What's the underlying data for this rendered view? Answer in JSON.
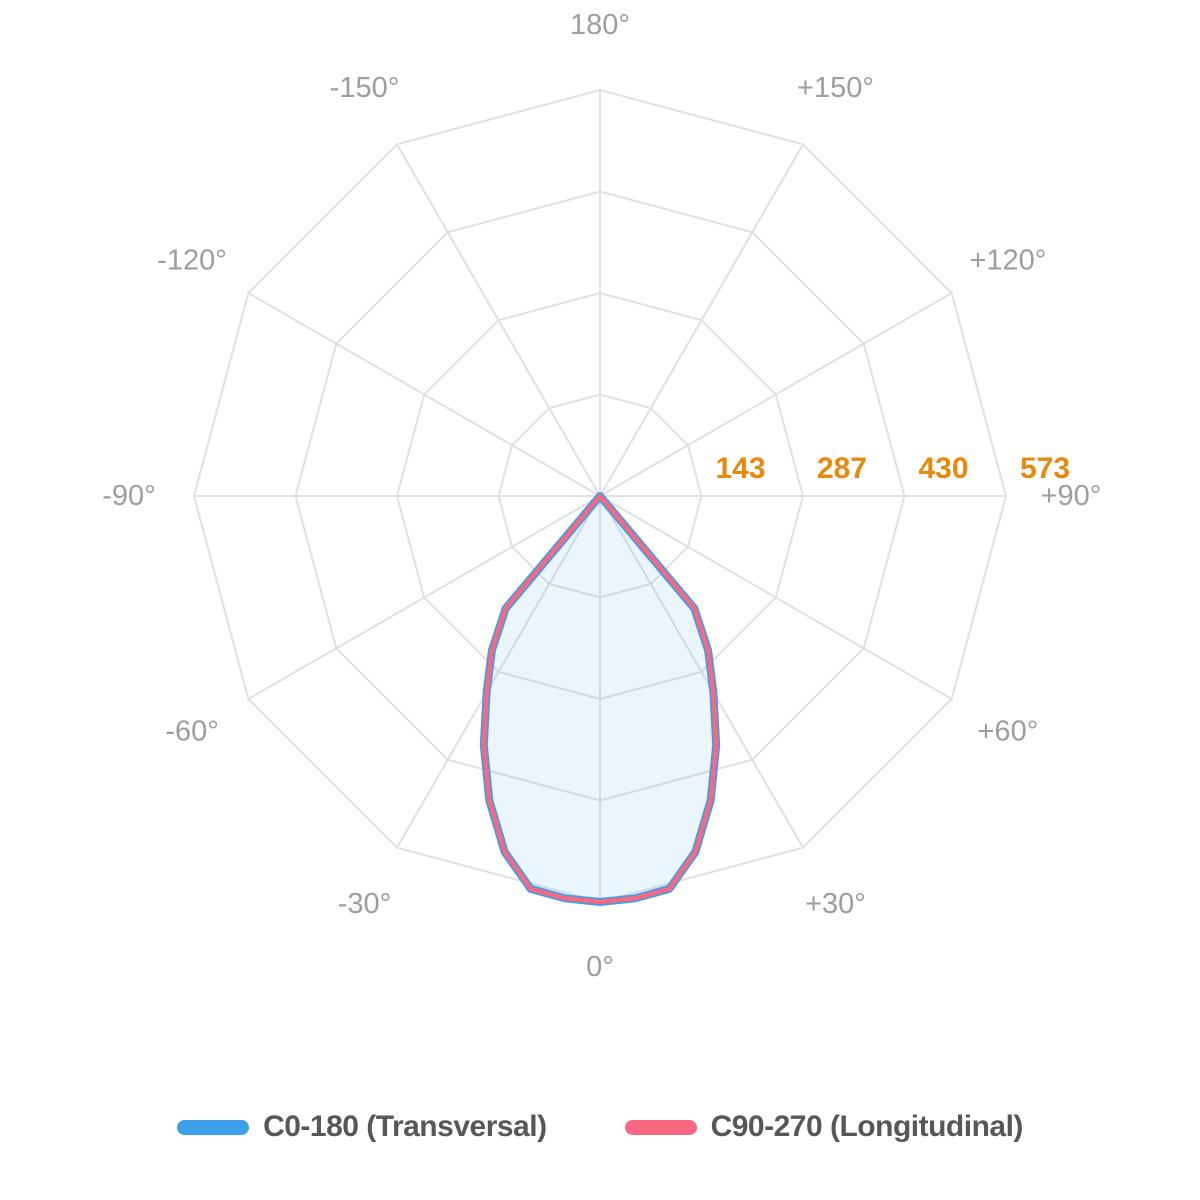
{
  "page": {
    "background": "#FFFFFF"
  },
  "chart_data": {
    "type": "polar",
    "subtype": "photometric-light-distribution",
    "title": "",
    "grid": {
      "rings": 4,
      "ring_shape": "polygon",
      "spoke_step_deg": 30,
      "color": "#E0E0E0",
      "line_width": 2,
      "zero_angle_position": "bottom",
      "positive_direction": "right"
    },
    "angle_ticks": [
      {
        "deg": 180,
        "label": "180°"
      },
      {
        "deg": -150,
        "label": "-150°"
      },
      {
        "deg": 150,
        "label": "+150°"
      },
      {
        "deg": -120,
        "label": "-120°"
      },
      {
        "deg": 120,
        "label": "+120°"
      },
      {
        "deg": -90,
        "label": "-90°"
      },
      {
        "deg": 90,
        "label": "+90°"
      },
      {
        "deg": -60,
        "label": "-60°"
      },
      {
        "deg": 60,
        "label": "+60°"
      },
      {
        "deg": -30,
        "label": "-30°"
      },
      {
        "deg": 30,
        "label": "+30°"
      },
      {
        "deg": 0,
        "label": "0°"
      }
    ],
    "angle_tick_color": "#9D9D9D",
    "radial_ticks": {
      "values": [
        143,
        287,
        430,
        573
      ],
      "labels": [
        "143",
        "287",
        "430",
        "573"
      ],
      "max": 573,
      "color": "#E8890B"
    },
    "series": [
      {
        "name": "C0-180 (Transversal)",
        "color": "#3E9FE9",
        "stroke_width": 8,
        "angles_deg": [
          -45,
          -40,
          -35,
          -30,
          -25,
          -20,
          -15,
          -10,
          -5,
          0,
          5,
          10,
          15,
          20,
          25,
          30,
          35,
          40,
          45
        ],
        "values": [
          0,
          207,
          266,
          320,
          388,
          457,
          520,
          563,
          570,
          573,
          570,
          563,
          520,
          457,
          388,
          320,
          266,
          207,
          0
        ]
      },
      {
        "name": "C90-270 (Longitudinal)",
        "color": "#F96880",
        "stroke_width": 4.5,
        "angles_deg": [
          -45,
          -40,
          -35,
          -30,
          -25,
          -20,
          -15,
          -10,
          -5,
          0,
          5,
          10,
          15,
          20,
          25,
          30,
          35,
          40,
          45
        ],
        "values": [
          0,
          207,
          266,
          320,
          388,
          457,
          520,
          563,
          570,
          573,
          570,
          563,
          520,
          457,
          388,
          320,
          266,
          207,
          0
        ]
      }
    ],
    "fill": {
      "color": "#3E9FE9",
      "opacity": 0.1
    },
    "legend_position": "bottom"
  },
  "legend": {
    "items": [
      {
        "label": "C0-180 (Transversal)",
        "color": "#3E9FE9"
      },
      {
        "label": "C90-270 (Longitudinal)",
        "color": "#F96880"
      }
    ]
  }
}
